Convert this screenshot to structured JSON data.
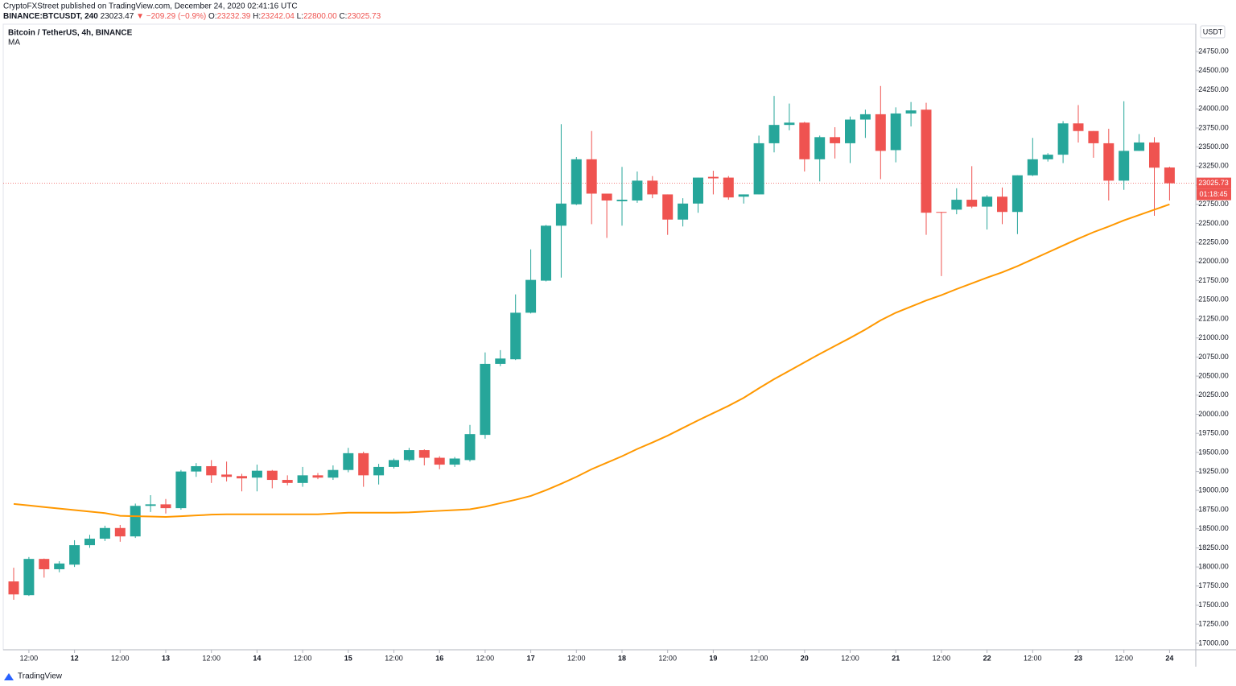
{
  "header": {
    "publisher": "CryptoFXStreet published on TradingView.com, December 24, 2020 02:41:16 UTC",
    "symbol": "BINANCE:BTCUSDT, 240",
    "last": "23023.47",
    "change": "▼ −209.29 (−0.9%)",
    "ohlc": [
      {
        "label": "O:",
        "value": "23232.39"
      },
      {
        "label": "H:",
        "value": "23242.04"
      },
      {
        "label": "L:",
        "value": "22800.00"
      },
      {
        "label": "C:",
        "value": "23025.73"
      }
    ]
  },
  "footer": {
    "brand": "TradingView"
  },
  "chart_data": {
    "type": "candlestick",
    "title": "Bitcoin / TetherUS, 4h, BINANCE",
    "currency": "USDT",
    "categories": [
      null,
      "12:00",
      null,
      null,
      "12",
      null,
      null,
      "12:00",
      null,
      null,
      "13",
      null,
      null,
      "12:00",
      null,
      null,
      "14",
      null,
      null,
      "12:00",
      null,
      null,
      "15",
      null,
      null,
      "12:00",
      null,
      null,
      "16",
      null,
      null,
      "12:00",
      null,
      null,
      "17",
      null,
      null,
      "12:00",
      null,
      null,
      "18",
      null,
      null,
      "12:00",
      null,
      null,
      "19",
      null,
      null,
      "12:00",
      null,
      null,
      "20",
      null,
      null,
      "12:00",
      null,
      null,
      "21",
      null,
      null,
      "12:00",
      null,
      null,
      "22",
      null,
      null,
      "12:00",
      null,
      null,
      "23",
      null,
      null,
      "12:00",
      null,
      null,
      "24"
    ],
    "open": [
      17810,
      17630,
      18105,
      17970,
      18030,
      18285,
      18370,
      18510,
      18400,
      18800,
      18820,
      18770,
      19250,
      19320,
      19210,
      19190,
      19170,
      19260,
      19140,
      19100,
      19200,
      19170,
      19270,
      19490,
      19200,
      19310,
      19400,
      19530,
      19430,
      19340,
      19400,
      19730,
      20660,
      20720,
      21330,
      21750,
      22470,
      22750,
      23340,
      22890,
      22790,
      22800,
      23060,
      22880,
      22550,
      22760,
      23110,
      23100,
      22850,
      22880,
      23550,
      23790,
      23820,
      23340,
      23630,
      23550,
      23860,
      23930,
      23460,
      23940,
      23990,
      22650,
      22680,
      22810,
      22720,
      22850,
      22650,
      23130,
      23340,
      23400,
      23810,
      23710,
      23550,
      23060,
      23450,
      23560,
      23232.39
    ],
    "high": [
      17990,
      18130,
      18110,
      18075,
      18350,
      18420,
      18540,
      18550,
      18830,
      18940,
      18890,
      19270,
      19360,
      19400,
      19380,
      19220,
      19340,
      19270,
      19200,
      19310,
      19230,
      19330,
      19560,
      19510,
      19350,
      19420,
      19560,
      19540,
      19450,
      19440,
      19860,
      20810,
      20840,
      21570,
      22160,
      22480,
      23800,
      23370,
      23710,
      22890,
      23240,
      23180,
      23120,
      22880,
      22830,
      23100,
      23190,
      23120,
      22880,
      23650,
      24170,
      24070,
      23830,
      23650,
      23760,
      23900,
      23990,
      24300,
      24020,
      24090,
      24080,
      22650,
      22960,
      23250,
      22870,
      22970,
      23130,
      23620,
      23420,
      23840,
      24050,
      23710,
      23740,
      24100,
      23670,
      23630,
      23242.04
    ],
    "low": [
      17570,
      17620,
      17860,
      17930,
      18000,
      18250,
      18340,
      18330,
      18380,
      18720,
      18700,
      18750,
      19180,
      19100,
      19120,
      18990,
      18990,
      19030,
      19070,
      19050,
      19150,
      19140,
      19240,
      19050,
      19080,
      19290,
      19380,
      19330,
      19280,
      19310,
      19380,
      19680,
      20630,
      20710,
      21320,
      21740,
      21790,
      22740,
      22490,
      22310,
      22470,
      22770,
      22830,
      22350,
      22460,
      22640,
      22880,
      22810,
      22760,
      22880,
      23430,
      23720,
      23180,
      23050,
      23350,
      23290,
      23620,
      23080,
      23300,
      23770,
      22350,
      21810,
      22620,
      22700,
      22420,
      22490,
      22360,
      23120,
      23310,
      23290,
      23560,
      23360,
      22800,
      22940,
      23450,
      22600,
      22800
    ],
    "close": [
      17640,
      18105,
      17970,
      18045,
      18285,
      18370,
      18510,
      18400,
      18800,
      18820,
      18770,
      19250,
      19320,
      19200,
      19180,
      19160,
      19260,
      19140,
      19100,
      19200,
      19170,
      19270,
      19490,
      19200,
      19310,
      19400,
      19530,
      19430,
      19340,
      19420,
      19740,
      20660,
      20730,
      21330,
      21760,
      22470,
      22760,
      23340,
      22890,
      22800,
      22810,
      23060,
      22880,
      22550,
      22760,
      23100,
      23090,
      22840,
      22880,
      23550,
      23790,
      23820,
      23340,
      23630,
      23550,
      23860,
      23930,
      23450,
      23940,
      23980,
      22640,
      22640,
      22810,
      22720,
      22850,
      22650,
      23130,
      23340,
      23400,
      23810,
      23710,
      23550,
      23060,
      23450,
      23560,
      23230,
      23025.73
    ],
    "up_color": "#26a69a",
    "down_color": "#ef5350",
    "series": [
      {
        "name": "MA",
        "color": "#ff9800",
        "values": [
          18825,
          18805,
          18785,
          18765,
          18745,
          18725,
          18705,
          18670,
          18665,
          18660,
          18655,
          18665,
          18675,
          18685,
          18690,
          18690,
          18690,
          18690,
          18690,
          18690,
          18690,
          18700,
          18710,
          18710,
          18710,
          18710,
          18715,
          18725,
          18735,
          18745,
          18755,
          18790,
          18835,
          18880,
          18930,
          19005,
          19090,
          19180,
          19280,
          19365,
          19450,
          19545,
          19630,
          19720,
          19820,
          19920,
          20015,
          20110,
          20215,
          20340,
          20460,
          20570,
          20680,
          20790,
          20895,
          21000,
          21110,
          21230,
          21330,
          21410,
          21490,
          21560,
          21640,
          21715,
          21790,
          21860,
          21940,
          22030,
          22120,
          22210,
          22300,
          22385,
          22460,
          22540,
          22610,
          22680,
          22750
        ]
      }
    ],
    "last_price": 23025.73,
    "countdown": "01:18:45",
    "ylim": [
      16915,
      25110
    ],
    "yticks": [
      {
        "value": 17000,
        "label": "17000.00"
      },
      {
        "value": 17250,
        "label": "17250.00"
      },
      {
        "value": 17500,
        "label": "17500.00"
      },
      {
        "value": 17750,
        "label": "17750.00"
      },
      {
        "value": 18000,
        "label": "18000.00"
      },
      {
        "value": 18250,
        "label": "18250.00"
      },
      {
        "value": 18500,
        "label": "18500.00"
      },
      {
        "value": 18750,
        "label": "18750.00"
      },
      {
        "value": 19000,
        "label": "19000.00"
      },
      {
        "value": 19250,
        "label": "19250.00"
      },
      {
        "value": 19500,
        "label": "19500.00"
      },
      {
        "value": 19750,
        "label": "19750.00"
      },
      {
        "value": 20000,
        "label": "20000.00"
      },
      {
        "value": 20250,
        "label": "20250.00"
      },
      {
        "value": 20500,
        "label": "20500.00"
      },
      {
        "value": 20750,
        "label": "20750.00"
      },
      {
        "value": 21000,
        "label": "21000.00"
      },
      {
        "value": 21250,
        "label": "21250.00"
      },
      {
        "value": 21500,
        "label": "21500.00"
      },
      {
        "value": 21750,
        "label": "21750.00"
      },
      {
        "value": 22000,
        "label": "22000.00"
      },
      {
        "value": 22250,
        "label": "22250.00"
      },
      {
        "value": 22500,
        "label": "22500.00"
      },
      {
        "value": 22750,
        "label": "22750.00"
      },
      {
        "value": 23000,
        "label": "23000.00"
      },
      {
        "value": 23250,
        "label": "23250.00"
      },
      {
        "value": 23500,
        "label": "23500.00"
      },
      {
        "value": 23750,
        "label": "23750.00"
      },
      {
        "value": 24000,
        "label": "24000.00"
      },
      {
        "value": 24250,
        "label": "24250.00"
      },
      {
        "value": 24500,
        "label": "24500.00"
      },
      {
        "value": 24750,
        "label": "24750.00"
      }
    ],
    "grid": false
  }
}
